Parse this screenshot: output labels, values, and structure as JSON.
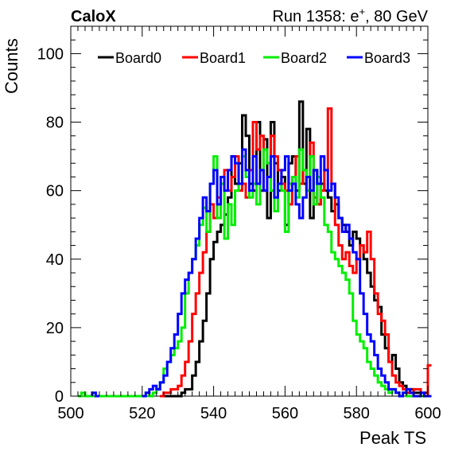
{
  "header": {
    "left": "CaloX",
    "right_prefix": "Run 1358: e",
    "right_sup": "+",
    "right_suffix": ", 80 GeV"
  },
  "chart_data": {
    "type": "line",
    "title": "",
    "xlabel": "Peak TS",
    "ylabel": "Counts",
    "xlim": [
      500,
      600
    ],
    "ylim": [
      0,
      108
    ],
    "xticks": [
      500,
      520,
      540,
      560,
      580,
      600
    ],
    "yticks": [
      0,
      20,
      40,
      60,
      80,
      100
    ],
    "grid": false,
    "legend_position": "top",
    "bin_width": 1,
    "series": [
      {
        "name": "Board0",
        "color": "#000000",
        "x": [
          525,
          526,
          527,
          528,
          529,
          530,
          531,
          532,
          533,
          534,
          535,
          536,
          537,
          538,
          539,
          540,
          541,
          542,
          543,
          544,
          545,
          546,
          547,
          548,
          549,
          550,
          551,
          552,
          553,
          554,
          555,
          556,
          557,
          558,
          559,
          560,
          561,
          562,
          563,
          564,
          565,
          566,
          567,
          568,
          569,
          570,
          571,
          572,
          573,
          574,
          575,
          576,
          577,
          578,
          579,
          580,
          581,
          582,
          583,
          584,
          585,
          586,
          587,
          588,
          589,
          590,
          591,
          592,
          593,
          594,
          595,
          596,
          597,
          598,
          599,
          600
        ],
        "values": [
          0,
          0,
          0,
          0,
          0,
          0,
          1,
          2,
          2,
          6,
          10,
          16,
          22,
          30,
          40,
          45,
          48,
          50,
          53,
          58,
          70,
          62,
          68,
          82,
          76,
          62,
          60,
          80,
          60,
          75,
          52,
          80,
          68,
          60,
          64,
          50,
          68,
          70,
          60,
          86,
          62,
          78,
          52,
          66,
          56,
          62,
          60,
          58,
          54,
          56,
          52,
          50,
          48,
          44,
          48,
          46,
          44,
          40,
          36,
          32,
          28,
          26,
          18,
          14,
          10,
          12,
          8,
          4,
          3,
          2,
          2,
          1,
          1,
          0,
          1,
          0
        ]
      },
      {
        "name": "Board1",
        "color": "#ff0000",
        "x": [
          525,
          526,
          527,
          528,
          529,
          530,
          531,
          532,
          533,
          534,
          535,
          536,
          537,
          538,
          539,
          540,
          541,
          542,
          543,
          544,
          545,
          546,
          547,
          548,
          549,
          550,
          551,
          552,
          553,
          554,
          555,
          556,
          557,
          558,
          559,
          560,
          561,
          562,
          563,
          564,
          565,
          566,
          567,
          568,
          569,
          570,
          571,
          572,
          573,
          574,
          575,
          576,
          577,
          578,
          579,
          580,
          581,
          582,
          583,
          584,
          585,
          586,
          587,
          588,
          589,
          590,
          591,
          592,
          593,
          594,
          595,
          596,
          597,
          598,
          599,
          600
        ],
        "values": [
          0,
          1,
          1,
          2,
          2,
          3,
          6,
          10,
          16,
          24,
          30,
          36,
          42,
          48,
          56,
          52,
          58,
          62,
          66,
          60,
          64,
          70,
          60,
          62,
          58,
          66,
          80,
          72,
          76,
          60,
          64,
          76,
          70,
          66,
          62,
          60,
          56,
          64,
          70,
          62,
          66,
          60,
          74,
          58,
          56,
          60,
          66,
          84,
          62,
          50,
          44,
          40,
          42,
          38,
          36,
          40,
          44,
          42,
          48,
          40,
          30,
          24,
          22,
          18,
          10,
          6,
          4,
          3,
          2,
          1,
          1,
          2,
          2,
          0,
          0,
          9
        ]
      },
      {
        "name": "Board2",
        "color": "#00ee00",
        "x": [
          502,
          503,
          504,
          505,
          506,
          507,
          508,
          509,
          510,
          511,
          512,
          513,
          514,
          515,
          516,
          517,
          518,
          519,
          520,
          521,
          522,
          523,
          524,
          525,
          526,
          527,
          528,
          529,
          530,
          531,
          532,
          533,
          534,
          535,
          536,
          537,
          538,
          539,
          540,
          541,
          542,
          543,
          544,
          545,
          546,
          547,
          548,
          549,
          550,
          551,
          552,
          553,
          554,
          555,
          556,
          557,
          558,
          559,
          560,
          561,
          562,
          563,
          564,
          565,
          566,
          567,
          568,
          569,
          570,
          571,
          572,
          573,
          574,
          575,
          576,
          577,
          578,
          579,
          580,
          581,
          582,
          583,
          584,
          585,
          586,
          587,
          588,
          589,
          590,
          591,
          592,
          593,
          594,
          595,
          596,
          597,
          598,
          599,
          600
        ],
        "values": [
          0,
          1,
          0,
          0,
          0,
          0,
          0,
          0,
          0,
          0,
          0,
          0,
          0,
          0,
          0,
          0,
          0,
          0,
          0,
          1,
          0,
          1,
          2,
          4,
          8,
          10,
          12,
          14,
          16,
          20,
          30,
          36,
          40,
          44,
          50,
          55,
          48,
          62,
          70,
          52,
          62,
          46,
          56,
          50,
          60,
          62,
          70,
          64,
          58,
          62,
          56,
          66,
          72,
          68,
          60,
          54,
          62,
          60,
          48,
          62,
          64,
          58,
          72,
          66,
          60,
          70,
          56,
          64,
          58,
          50,
          48,
          42,
          40,
          38,
          36,
          34,
          30,
          22,
          18,
          16,
          14,
          10,
          8,
          6,
          4,
          3,
          2,
          1,
          2,
          1,
          0,
          1,
          0,
          0,
          0,
          0,
          0,
          0,
          0
        ]
      },
      {
        "name": "Board3",
        "color": "#0000ff",
        "x": [
          506,
          507,
          520,
          521,
          522,
          523,
          524,
          525,
          526,
          527,
          528,
          529,
          530,
          531,
          532,
          533,
          534,
          535,
          536,
          537,
          538,
          539,
          540,
          541,
          542,
          543,
          544,
          545,
          546,
          547,
          548,
          549,
          550,
          551,
          552,
          553,
          554,
          555,
          556,
          557,
          558,
          559,
          560,
          561,
          562,
          563,
          564,
          565,
          566,
          567,
          568,
          569,
          570,
          571,
          572,
          573,
          574,
          575,
          576,
          577,
          578,
          579,
          580,
          581,
          582,
          583,
          584,
          585,
          586,
          587,
          588,
          589,
          590,
          591,
          592,
          593,
          594,
          595,
          596,
          597,
          598,
          599,
          600
        ],
        "values": [
          1,
          0,
          0,
          1,
          2,
          3,
          2,
          4,
          6,
          10,
          14,
          18,
          24,
          30,
          34,
          36,
          40,
          46,
          52,
          58,
          54,
          62,
          66,
          56,
          64,
          60,
          66,
          70,
          68,
          62,
          72,
          66,
          60,
          70,
          62,
          66,
          60,
          64,
          70,
          58,
          62,
          66,
          70,
          60,
          62,
          56,
          52,
          58,
          64,
          60,
          66,
          62,
          70,
          66,
          60,
          62,
          58,
          52,
          48,
          50,
          46,
          42,
          40,
          30,
          24,
          18,
          16,
          12,
          8,
          6,
          4,
          2,
          2,
          1,
          0,
          1,
          2,
          1,
          0,
          0,
          1,
          0,
          0
        ]
      }
    ]
  }
}
